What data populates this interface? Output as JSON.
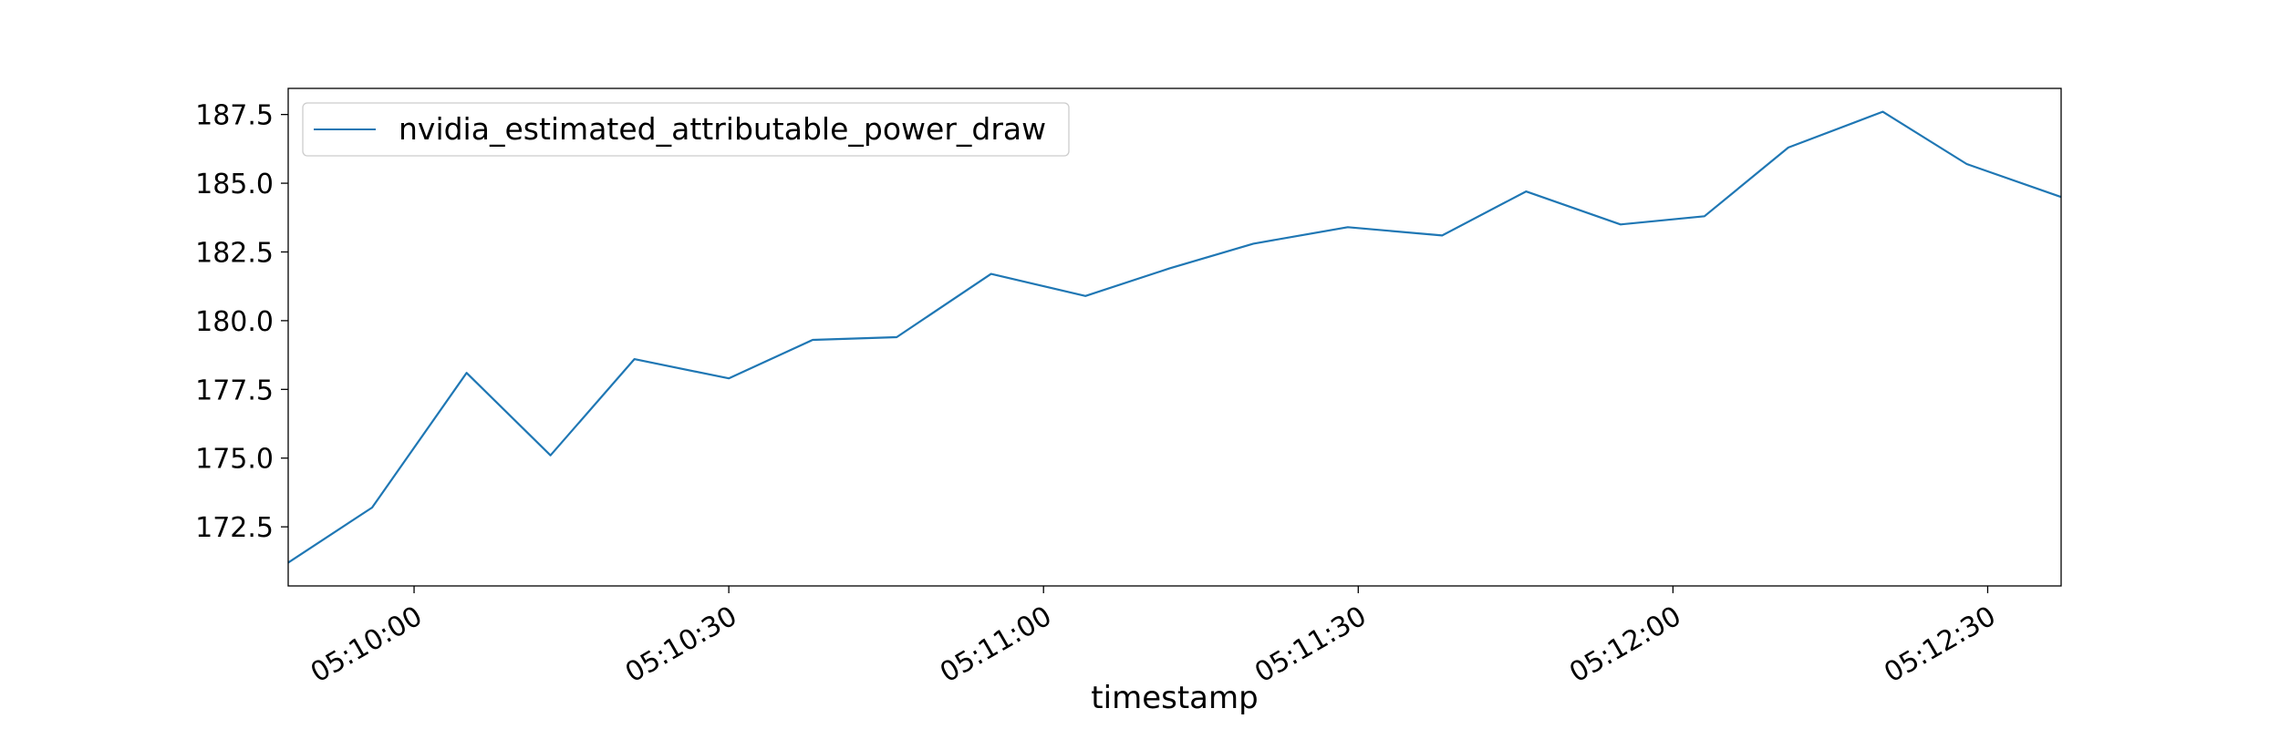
{
  "chart_data": {
    "type": "line",
    "title": "",
    "xlabel": "timestamp",
    "ylabel": "",
    "grid": false,
    "legend_position": "upper-left",
    "x_type": "time",
    "xlim": [
      "05:09:48",
      "05:12:37"
    ],
    "ylim": [
      170.35,
      188.45
    ],
    "x_ticks": [
      "05:10:00",
      "05:10:30",
      "05:11:00",
      "05:11:30",
      "05:12:00",
      "05:12:30"
    ],
    "y_ticks": [
      "172.5",
      "175.0",
      "177.5",
      "180.0",
      "182.5",
      "185.0",
      "187.5"
    ],
    "series": [
      {
        "name": "nvidia_estimated_attributable_power_draw",
        "color": "#1f77b4",
        "x": [
          "05:09:48",
          "05:09:56",
          "05:10:05",
          "05:10:13",
          "05:10:21",
          "05:10:30",
          "05:10:38",
          "05:10:46",
          "05:10:55",
          "05:11:04",
          "05:11:12",
          "05:11:20",
          "05:11:29",
          "05:11:38",
          "05:11:46",
          "05:11:55",
          "05:12:03",
          "05:12:11",
          "05:12:20",
          "05:12:28",
          "05:12:37"
        ],
        "values": [
          171.2,
          173.2,
          178.1,
          175.1,
          178.6,
          177.9,
          179.3,
          179.4,
          181.7,
          180.9,
          181.9,
          182.8,
          183.4,
          183.1,
          184.7,
          183.5,
          183.8,
          186.3,
          187.6,
          185.7,
          184.5
        ]
      }
    ]
  }
}
